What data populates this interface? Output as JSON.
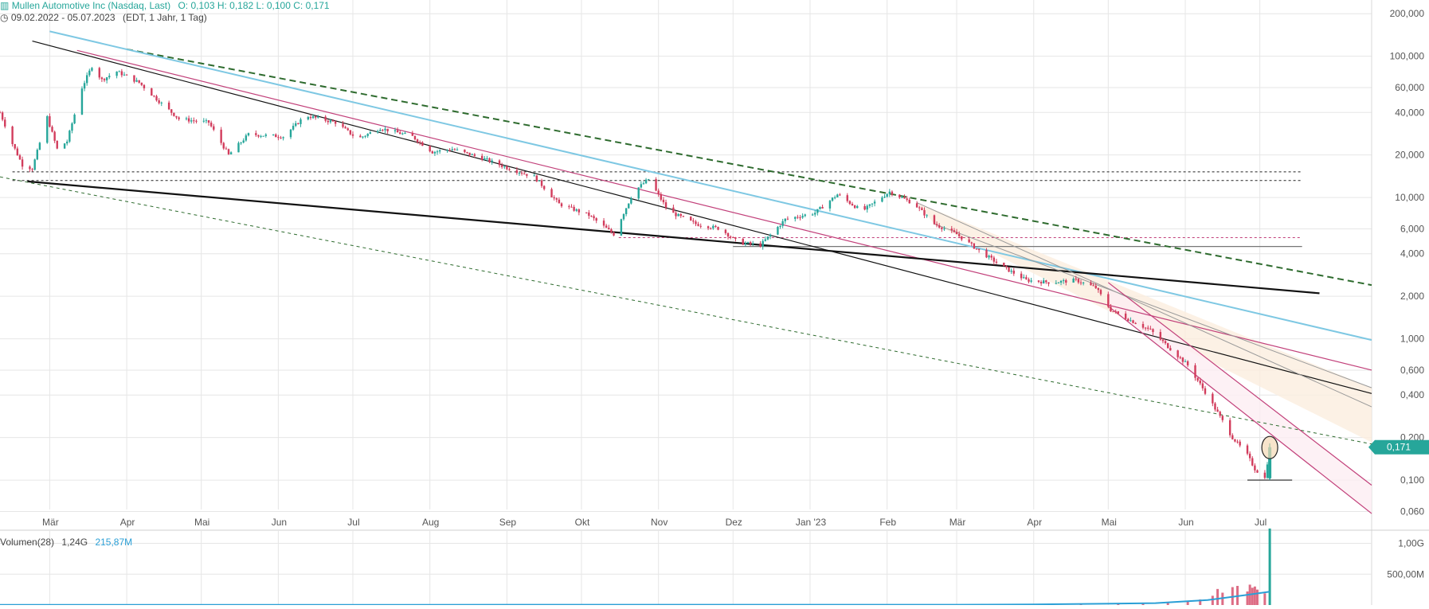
{
  "header": {
    "instrument": "Mullen Automotive Inc (Nasdaq, Last)",
    "ohlc": "O: 0,103  H: 0,182  L: 0,100  C: 0,171",
    "range": "09.02.2022 - 05.07.2023",
    "range_info": "(EDT, 1 Jahr, 1 Tag)",
    "volume_label": "Volumen(28)",
    "volume_value": "1,24G",
    "volume_ma": "215,87M"
  },
  "last_price_label": "0,171",
  "colors": {
    "up": "#26a69a",
    "down": "#d23c5c",
    "grid": "#e6e6e6",
    "price_tag": "#26a69a",
    "trend_dark_green": "#2e6b2e",
    "trend_light_blue": "#7ec8e3",
    "trend_magenta": "#c2407a",
    "trend_black": "#111111",
    "band_fill": "#fbeede"
  },
  "chart_data": {
    "type": "candlestick",
    "title": "Mullen Automotive Inc (Nasdaq, Last)",
    "scale": "log",
    "grid": true,
    "legend": "top-left",
    "x_ticks": [
      "Mär",
      "Apr",
      "Mai",
      "Jun",
      "Jul",
      "Aug",
      "Sep",
      "Okt",
      "Nov",
      "Dez",
      "Jan '23",
      "Feb",
      "Mär",
      "Apr",
      "Mai",
      "Jun",
      "Jul"
    ],
    "y_ticks": [
      "200,000",
      "100,000",
      "60,000",
      "40,000",
      "20,000",
      "10,000",
      "6,000",
      "4,000",
      "2,000",
      "1,000",
      "0,600",
      "0,400",
      "0,200",
      "0,100",
      "0,060"
    ],
    "y_tick_values": [
      200,
      100,
      60,
      40,
      20,
      10,
      6,
      4,
      2,
      1,
      0.6,
      0.4,
      0.2,
      0.1,
      0.06
    ],
    "ylim": [
      0.053,
      250
    ],
    "xlim": [
      "2022-02-09",
      "2023-08-15"
    ],
    "last_candle": {
      "open": 0.103,
      "high": 0.182,
      "low": 0.1,
      "close": 0.171
    },
    "price_path": [
      [
        "2022-02-09",
        40
      ],
      [
        "2022-02-14",
        24
      ],
      [
        "2022-02-18",
        17
      ],
      [
        "2022-02-22",
        16
      ],
      [
        "2022-02-28",
        37
      ],
      [
        "2022-03-04",
        22
      ],
      [
        "2022-03-08",
        25
      ],
      [
        "2022-03-14",
        60
      ],
      [
        "2022-03-18",
        85
      ],
      [
        "2022-03-22",
        68
      ],
      [
        "2022-03-28",
        78
      ],
      [
        "2022-04-06",
        65
      ],
      [
        "2022-04-14",
        48
      ],
      [
        "2022-04-22",
        36
      ],
      [
        "2022-05-04",
        34
      ],
      [
        "2022-05-12",
        20
      ],
      [
        "2022-05-20",
        28
      ],
      [
        "2022-06-03",
        27
      ],
      [
        "2022-06-12",
        38
      ],
      [
        "2022-06-24",
        34
      ],
      [
        "2022-07-03",
        26
      ],
      [
        "2022-07-12",
        31
      ],
      [
        "2022-07-25",
        27
      ],
      [
        "2022-08-02",
        21
      ],
      [
        "2022-08-10",
        22
      ],
      [
        "2022-08-22",
        19
      ],
      [
        "2022-09-02",
        16
      ],
      [
        "2022-09-12",
        14
      ],
      [
        "2022-09-22",
        9
      ],
      [
        "2022-10-04",
        7.5
      ],
      [
        "2022-10-14",
        5.5
      ],
      [
        "2022-10-22",
        11
      ],
      [
        "2022-10-28",
        13.5
      ],
      [
        "2022-11-05",
        8
      ],
      [
        "2022-11-16",
        6.5
      ],
      [
        "2022-11-26",
        6
      ],
      [
        "2022-12-03",
        4.8
      ],
      [
        "2022-12-12",
        4.6
      ],
      [
        "2022-12-22",
        7
      ],
      [
        "2023-01-03",
        7.8
      ],
      [
        "2023-01-12",
        10.5
      ],
      [
        "2023-01-22",
        8
      ],
      [
        "2023-02-02",
        11
      ],
      [
        "2023-02-12",
        9
      ],
      [
        "2023-02-20",
        6.5
      ],
      [
        "2023-03-01",
        5.5
      ],
      [
        "2023-03-10",
        4.2
      ],
      [
        "2023-03-20",
        3.2
      ],
      [
        "2023-03-29",
        2.6
      ],
      [
        "2023-04-08",
        2.5
      ],
      [
        "2023-04-18",
        2.6
      ],
      [
        "2023-04-26",
        2.3
      ],
      [
        "2023-05-02",
        1.6
      ],
      [
        "2023-05-10",
        1.35
      ],
      [
        "2023-05-18",
        1.15
      ],
      [
        "2023-05-26",
        0.85
      ],
      [
        "2023-06-02",
        0.65
      ],
      [
        "2023-06-09",
        0.42
      ],
      [
        "2023-06-15",
        0.28
      ],
      [
        "2023-06-20",
        0.2
      ],
      [
        "2023-06-26",
        0.15
      ],
      [
        "2023-06-29",
        0.12
      ],
      [
        "2023-07-03",
        0.103
      ],
      [
        "2023-07-05",
        0.171
      ]
    ],
    "trend_lines": [
      {
        "color": "dark_green",
        "dash": true,
        "width": 2,
        "p1": [
          "2022-04-01",
          112
        ],
        "p2": [
          "2023-08-15",
          2.4
        ]
      },
      {
        "color": "light_blue",
        "dash": false,
        "width": 2,
        "p1": [
          "2022-03-01",
          150
        ],
        "p2": [
          "2023-08-15",
          0.98
        ]
      },
      {
        "color": "magenta",
        "dash": false,
        "width": 1.2,
        "p1": [
          "2022-03-12",
          110
        ],
        "p2": [
          "2023-08-15",
          0.6
        ]
      },
      {
        "color": "black",
        "dash": false,
        "width": 1.2,
        "p1": [
          "2022-02-22",
          128
        ],
        "p2": [
          "2023-08-15",
          0.41
        ]
      },
      {
        "color": "black",
        "dash": false,
        "width": 2.2,
        "p1": [
          "2022-02-20",
          13
        ],
        "p2": [
          "2023-07-25",
          2.1
        ]
      },
      {
        "color": "dark_green",
        "dash": true,
        "width": 1,
        "p1": [
          "2022-02-09",
          14
        ],
        "p2": [
          "2023-08-15",
          0.18
        ]
      },
      {
        "color": "grey",
        "dash": false,
        "width": 1,
        "p1": [
          "2023-02-20",
          6.5
        ],
        "p2": [
          "2023-08-15",
          0.45
        ]
      },
      {
        "color": "grey",
        "dash": false,
        "width": 1,
        "p1": [
          "2023-02-13",
          9.2
        ],
        "p2": [
          "2023-08-15",
          0.33
        ]
      },
      {
        "color": "magenta",
        "dash": false,
        "width": 1.2,
        "p1": [
          "2023-05-01",
          2.5
        ],
        "p2": [
          "2023-08-15",
          0.092
        ]
      },
      {
        "color": "magenta",
        "dash": false,
        "width": 1.2,
        "p1": [
          "2023-05-01",
          1.7
        ],
        "p2": [
          "2023-08-15",
          0.058
        ]
      }
    ],
    "horizontal_lines": [
      {
        "value": 15.2,
        "from": "2022-02-14",
        "to": "2023-07-18",
        "style": "dashed",
        "color": "black"
      },
      {
        "value": 13.2,
        "from": "2022-02-14",
        "to": "2023-07-18",
        "style": "dashed",
        "color": "black"
      },
      {
        "value": 5.2,
        "from": "2022-10-16",
        "to": "2023-07-18",
        "style": "dashed",
        "color": "magenta"
      },
      {
        "value": 4.5,
        "from": "2022-12-01",
        "to": "2023-07-18",
        "style": "solid",
        "color": "grey"
      },
      {
        "value": 0.1,
        "from": "2023-06-26",
        "to": "2023-07-14",
        "style": "solid",
        "color": "black"
      }
    ],
    "annotation_circle": {
      "date": "2023-07-05",
      "value": 0.17
    },
    "volume": {
      "label": "Volumen(28)",
      "y_ticks": [
        "1,00G",
        "500,00M"
      ],
      "y_tick_values": [
        1000,
        500
      ],
      "ylim": [
        0,
        1200
      ],
      "unit": "M",
      "bars": [
        [
          "2023-04-01",
          15
        ],
        [
          "2023-04-20",
          20
        ],
        [
          "2023-05-05",
          25
        ],
        [
          "2023-05-15",
          30
        ],
        [
          "2023-05-25",
          40
        ],
        [
          "2023-06-02",
          60
        ],
        [
          "2023-06-07",
          90
        ],
        [
          "2023-06-12",
          150
        ],
        [
          "2023-06-14",
          260
        ],
        [
          "2023-06-16",
          200
        ],
        [
          "2023-06-20",
          290
        ],
        [
          "2023-06-22",
          310
        ],
        [
          "2023-06-26",
          220
        ],
        [
          "2023-06-27",
          330
        ],
        [
          "2023-06-28",
          280
        ],
        [
          "2023-06-29",
          300
        ],
        [
          "2023-06-30",
          250
        ],
        [
          "2023-07-03",
          190
        ],
        [
          "2023-07-05",
          1240
        ]
      ],
      "ma": [
        [
          "2023-04-01",
          10
        ],
        [
          "2023-05-20",
          30
        ],
        [
          "2023-06-10",
          80
        ],
        [
          "2023-06-25",
          160
        ],
        [
          "2023-07-05",
          215.87
        ]
      ]
    }
  }
}
